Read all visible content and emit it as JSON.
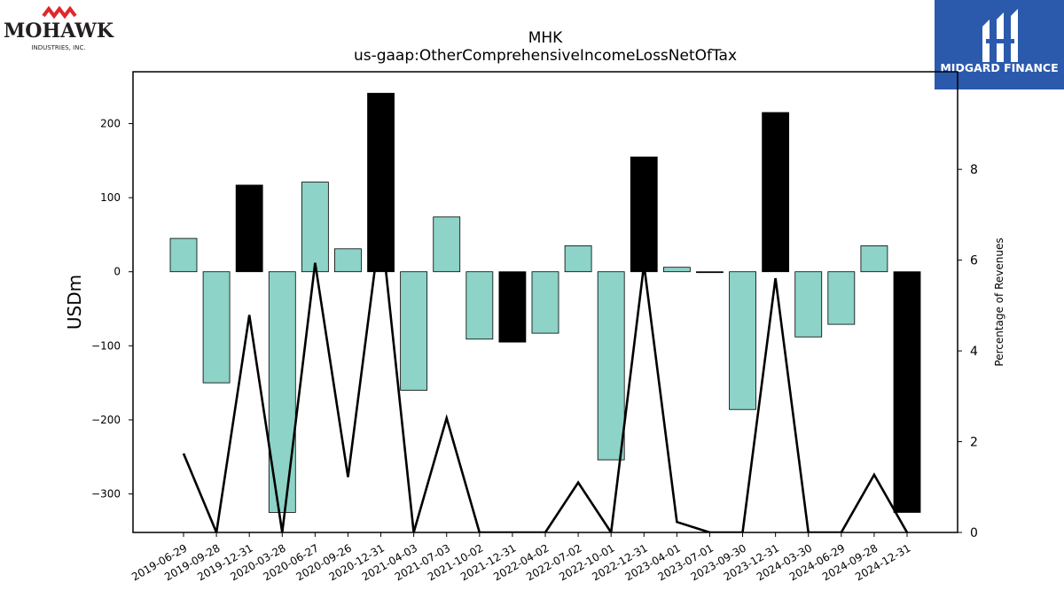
{
  "company_logo": {
    "name": "MOHAWK",
    "subtitle": "INDUSTRIES, INC.",
    "mark_color": "#e0262c",
    "text_color": "#231f20"
  },
  "brand_logo": {
    "name": "MIDGARD FINANCE",
    "background": "#2b5aad",
    "text_color": "#ffffff"
  },
  "chart_data": {
    "type": "bar",
    "title": "MHK",
    "subtitle": "us-gaap:OtherComprehensiveIncomeLossNetOfTax",
    "ylabel": "USDm",
    "y2label": "Percentage of Revenues",
    "ylim": [
      -352,
      270
    ],
    "y2lim": [
      0,
      10.15
    ],
    "yticks": [
      -300,
      -200,
      -100,
      0,
      100,
      200
    ],
    "y2ticks": [
      0,
      2,
      4,
      6,
      8
    ],
    "categories": [
      "2019-06-29",
      "2019-09-28",
      "2019-12-31",
      "2020-03-28",
      "2020-06-27",
      "2020-09-26",
      "2020-12-31",
      "2021-04-03",
      "2021-07-03",
      "2021-10-02",
      "2021-12-31",
      "2022-04-02",
      "2022-07-02",
      "2022-10-01",
      "2022-12-31",
      "2023-04-01",
      "2023-07-01",
      "2023-09-30",
      "2023-12-31",
      "2024-03-30",
      "2024-06-29",
      "2024-09-28",
      "2024-12-31"
    ],
    "series": [
      {
        "kind": "bar",
        "values": [
          45,
          -150,
          117,
          -325,
          121,
          31,
          241,
          -160,
          74,
          -91,
          -95,
          -83,
          35,
          -254,
          155,
          6,
          -1,
          -186,
          215,
          -88,
          -71,
          35,
          -325
        ],
        "colors": [
          "#8dd3c7",
          "#8dd3c7",
          "#000000",
          "#8dd3c7",
          "#8dd3c7",
          "#8dd3c7",
          "#000000",
          "#8dd3c7",
          "#8dd3c7",
          "#8dd3c7",
          "#000000",
          "#8dd3c7",
          "#8dd3c7",
          "#8dd3c7",
          "#000000",
          "#8dd3c7",
          "#000000",
          "#8dd3c7",
          "#000000",
          "#8dd3c7",
          "#8dd3c7",
          "#8dd3c7",
          "#000000"
        ]
      },
      {
        "kind": "line",
        "axis": "right",
        "values": [
          1.74,
          0,
          4.79,
          0,
          5.94,
          1.22,
          6.82,
          0,
          2.52,
          0,
          0,
          0,
          1.1,
          0,
          5.9,
          0.23,
          0,
          0,
          5.6,
          0,
          0,
          1.27,
          0
        ],
        "color": "#000000"
      }
    ],
    "grid": false,
    "legend": "none",
    "colors": {
      "positive": "#8dd3c7",
      "highlight": "#000000",
      "line": "#000000"
    }
  }
}
